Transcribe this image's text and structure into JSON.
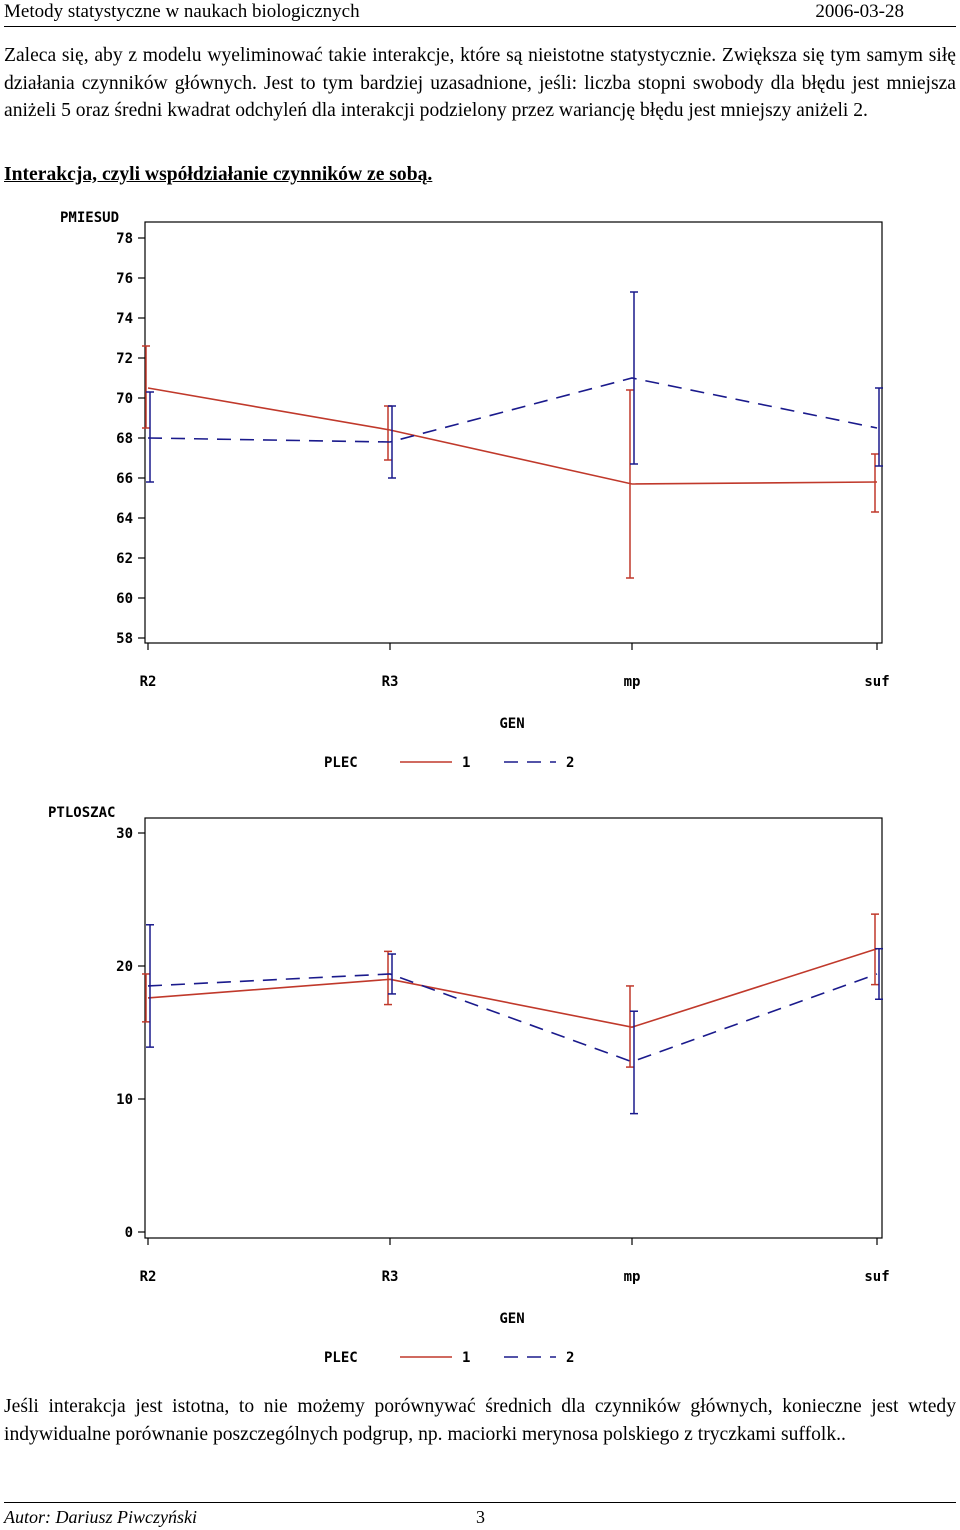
{
  "header": {
    "title": "Metody statystyczne w naukach biologicznych",
    "date": "2006-03-28"
  },
  "paragraph1": "Zaleca się, aby z modelu wyeliminować takie interakcje, które są nieistotne statystycznie. Zwiększa się tym samym siłę działania czynników głównych. Jest to tym bardziej uzasadnione, jeśli: liczba stopni swobody dla błędu jest mniejsza aniżeli 5 oraz średni kwadrat odchyleń dla interakcji podzielony przez wariancję błędu jest mniejszy aniżeli 2.",
  "heading": "Interakcja, czyli współdziałanie czynników ze sobą.",
  "paragraph2": "Jeśli interakcja jest istotna, to nie możemy porównywać średnich dla czynników głównych, konieczne jest wtedy indywidualne porównanie poszczególnych podgrup, np. maciorki merynosa polskiego z tryczkami suffolk..",
  "footer": {
    "author": "Autor: Dariusz Piwczyński",
    "page": "3"
  },
  "colors": {
    "series1": "#c0392b",
    "series2": "#1a1a8c"
  },
  "chart_data": [
    {
      "type": "line",
      "ylabel": "PMIESUD",
      "xlabel": "GEN",
      "legend_title": "PLEC",
      "categories": [
        "R2",
        "R3",
        "mp",
        "suf"
      ],
      "ylim": [
        58,
        78
      ],
      "yticks": [
        58,
        60,
        62,
        64,
        66,
        68,
        70,
        72,
        74,
        76,
        78
      ],
      "series": [
        {
          "name": "1",
          "values": [
            70.5,
            68.4,
            65.7,
            65.8
          ],
          "lower": [
            68.5,
            66.9,
            61.0,
            64.3
          ],
          "upper": [
            72.6,
            69.6,
            70.4,
            67.2
          ]
        },
        {
          "name": "2",
          "values": [
            68.0,
            67.8,
            71.0,
            68.5
          ],
          "lower": [
            65.8,
            66.0,
            66.7,
            66.6
          ],
          "upper": [
            70.3,
            69.6,
            75.3,
            70.5
          ]
        }
      ]
    },
    {
      "type": "line",
      "ylabel": "PTLOSZAC",
      "xlabel": "GEN",
      "legend_title": "PLEC",
      "categories": [
        "R2",
        "R3",
        "mp",
        "suf"
      ],
      "ylim": [
        0,
        30
      ],
      "yticks": [
        0,
        10,
        20,
        30
      ],
      "series": [
        {
          "name": "1",
          "values": [
            17.6,
            19.0,
            15.4,
            21.3
          ],
          "lower": [
            15.8,
            17.1,
            12.4,
            18.6
          ],
          "upper": [
            19.4,
            21.1,
            18.5,
            23.9
          ]
        },
        {
          "name": "2",
          "values": [
            18.5,
            19.4,
            12.8,
            19.4
          ],
          "lower": [
            13.9,
            17.9,
            8.9,
            17.5
          ],
          "upper": [
            23.1,
            20.9,
            16.6,
            21.3
          ]
        }
      ]
    }
  ]
}
